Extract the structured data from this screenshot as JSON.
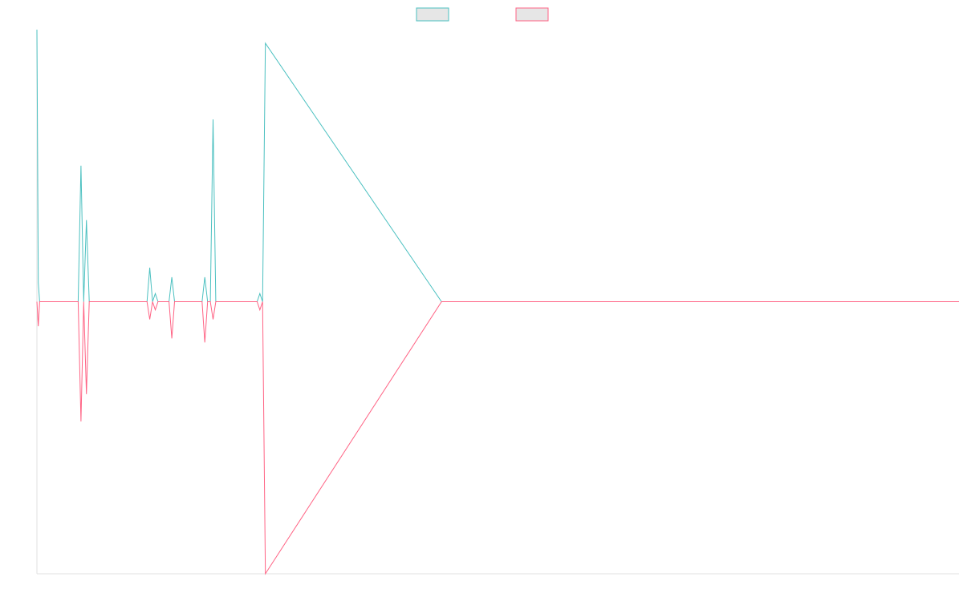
{
  "chart_data": {
    "type": "line",
    "title": "",
    "xlabel": "",
    "ylabel": "",
    "grid": false,
    "legend_position": "top-center",
    "xlim": [
      0,
      335
    ],
    "ylim": [
      -1,
      1
    ],
    "x": [
      0,
      0.5,
      1,
      15,
      16,
      17,
      18,
      19,
      20,
      21,
      22,
      40,
      41,
      42,
      43,
      44,
      48,
      49,
      50,
      60,
      61,
      62,
      63,
      64,
      65,
      80,
      81,
      82,
      83,
      147,
      148
    ],
    "series": [
      {
        "color": "#4bc0c0",
        "values": [
          1.0,
          0.07,
          0,
          0,
          0.5,
          0,
          0.3,
          0,
          0,
          0,
          0,
          0,
          0.125,
          0,
          0.03,
          0,
          0,
          0.09,
          0,
          0,
          0.09,
          0,
          0,
          0.67,
          0,
          0,
          0.03,
          0,
          0.95,
          0,
          0.0
        ]
      },
      {
        "color": "#ff6384",
        "values": [
          0,
          -0.09,
          0,
          0,
          -0.44,
          0,
          -0.34,
          0,
          0,
          0,
          0,
          0,
          -0.065,
          0,
          -0.03,
          0,
          0,
          -0.135,
          0,
          0,
          -0.15,
          0,
          0,
          -0.065,
          0,
          0,
          -0.03,
          0,
          -1.0,
          0,
          0.0
        ]
      }
    ]
  }
}
